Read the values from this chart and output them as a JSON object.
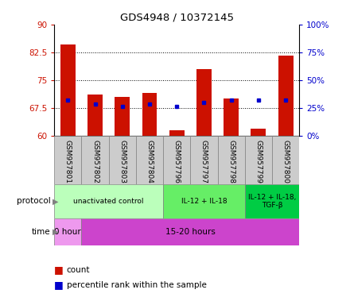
{
  "title": "GDS4948 / 10372145",
  "samples": [
    "GSM957801",
    "GSM957802",
    "GSM957803",
    "GSM957804",
    "GSM957796",
    "GSM957797",
    "GSM957798",
    "GSM957799",
    "GSM957800"
  ],
  "counts": [
    84.5,
    71.0,
    70.5,
    71.5,
    61.5,
    78.0,
    70.0,
    62.0,
    81.5
  ],
  "baseline": 60,
  "percentile_ranks": [
    69.5,
    68.5,
    68.0,
    68.5,
    68.0,
    69.0,
    69.5,
    69.5,
    69.5
  ],
  "ylim_left": [
    60,
    90
  ],
  "yticks_left": [
    60,
    67.5,
    75,
    82.5,
    90
  ],
  "yticks_right": [
    0,
    25,
    50,
    75,
    100
  ],
  "bar_color": "#cc1100",
  "dot_color": "#0000cc",
  "protocol_groups": [
    {
      "label": "unactivated control",
      "start": 0,
      "end": 4,
      "color": "#bbffbb"
    },
    {
      "label": "IL-12 + IL-18",
      "start": 4,
      "end": 7,
      "color": "#66ee66"
    },
    {
      "label": "IL-12 + IL-18,\nTGF-β",
      "start": 7,
      "end": 9,
      "color": "#00cc44"
    }
  ],
  "time_groups": [
    {
      "label": "0 hour",
      "start": 0,
      "end": 1,
      "color": "#ee99ee"
    },
    {
      "label": "15-20 hours",
      "start": 1,
      "end": 9,
      "color": "#cc44cc"
    }
  ],
  "bg_color": "#ffffff",
  "tick_label_bg": "#cccccc"
}
